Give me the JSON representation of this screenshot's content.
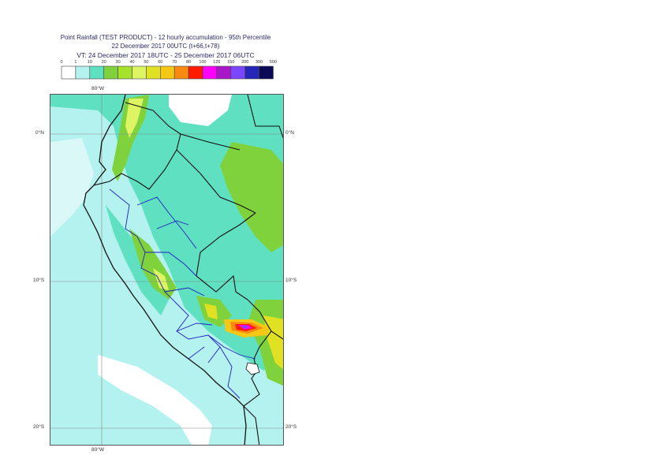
{
  "header": {
    "line1": "Point Rainfall (TEST PRODUCT) - 12 hourly accumulation - 95th Percentile",
    "line2": "22 December 2017 00UTC (t+66,t+78)",
    "line3": "VT: 24 December 2017 18UTC - 25 December 2017 06UTC"
  },
  "legend": {
    "thresholds": [
      "0",
      "1",
      "10",
      "20",
      "30",
      "40",
      "50",
      "60",
      "70",
      "80",
      "100",
      "125",
      "150",
      "200",
      "300",
      "500"
    ],
    "colors": [
      "#ffffff",
      "#b4f2f0",
      "#5fe0c0",
      "#7fd23c",
      "#a6e22a",
      "#ddf563",
      "#e1e123",
      "#f5c815",
      "#f88a12",
      "#ff1a00",
      "#ff00ff",
      "#a818c8",
      "#7a46ff",
      "#2626b8",
      "#0a0a55"
    ]
  },
  "map": {
    "lon_top": "80°W",
    "lon_bottom": "80°W",
    "lat_labels": [
      "0°N",
      "10°S",
      "20°S"
    ]
  }
}
